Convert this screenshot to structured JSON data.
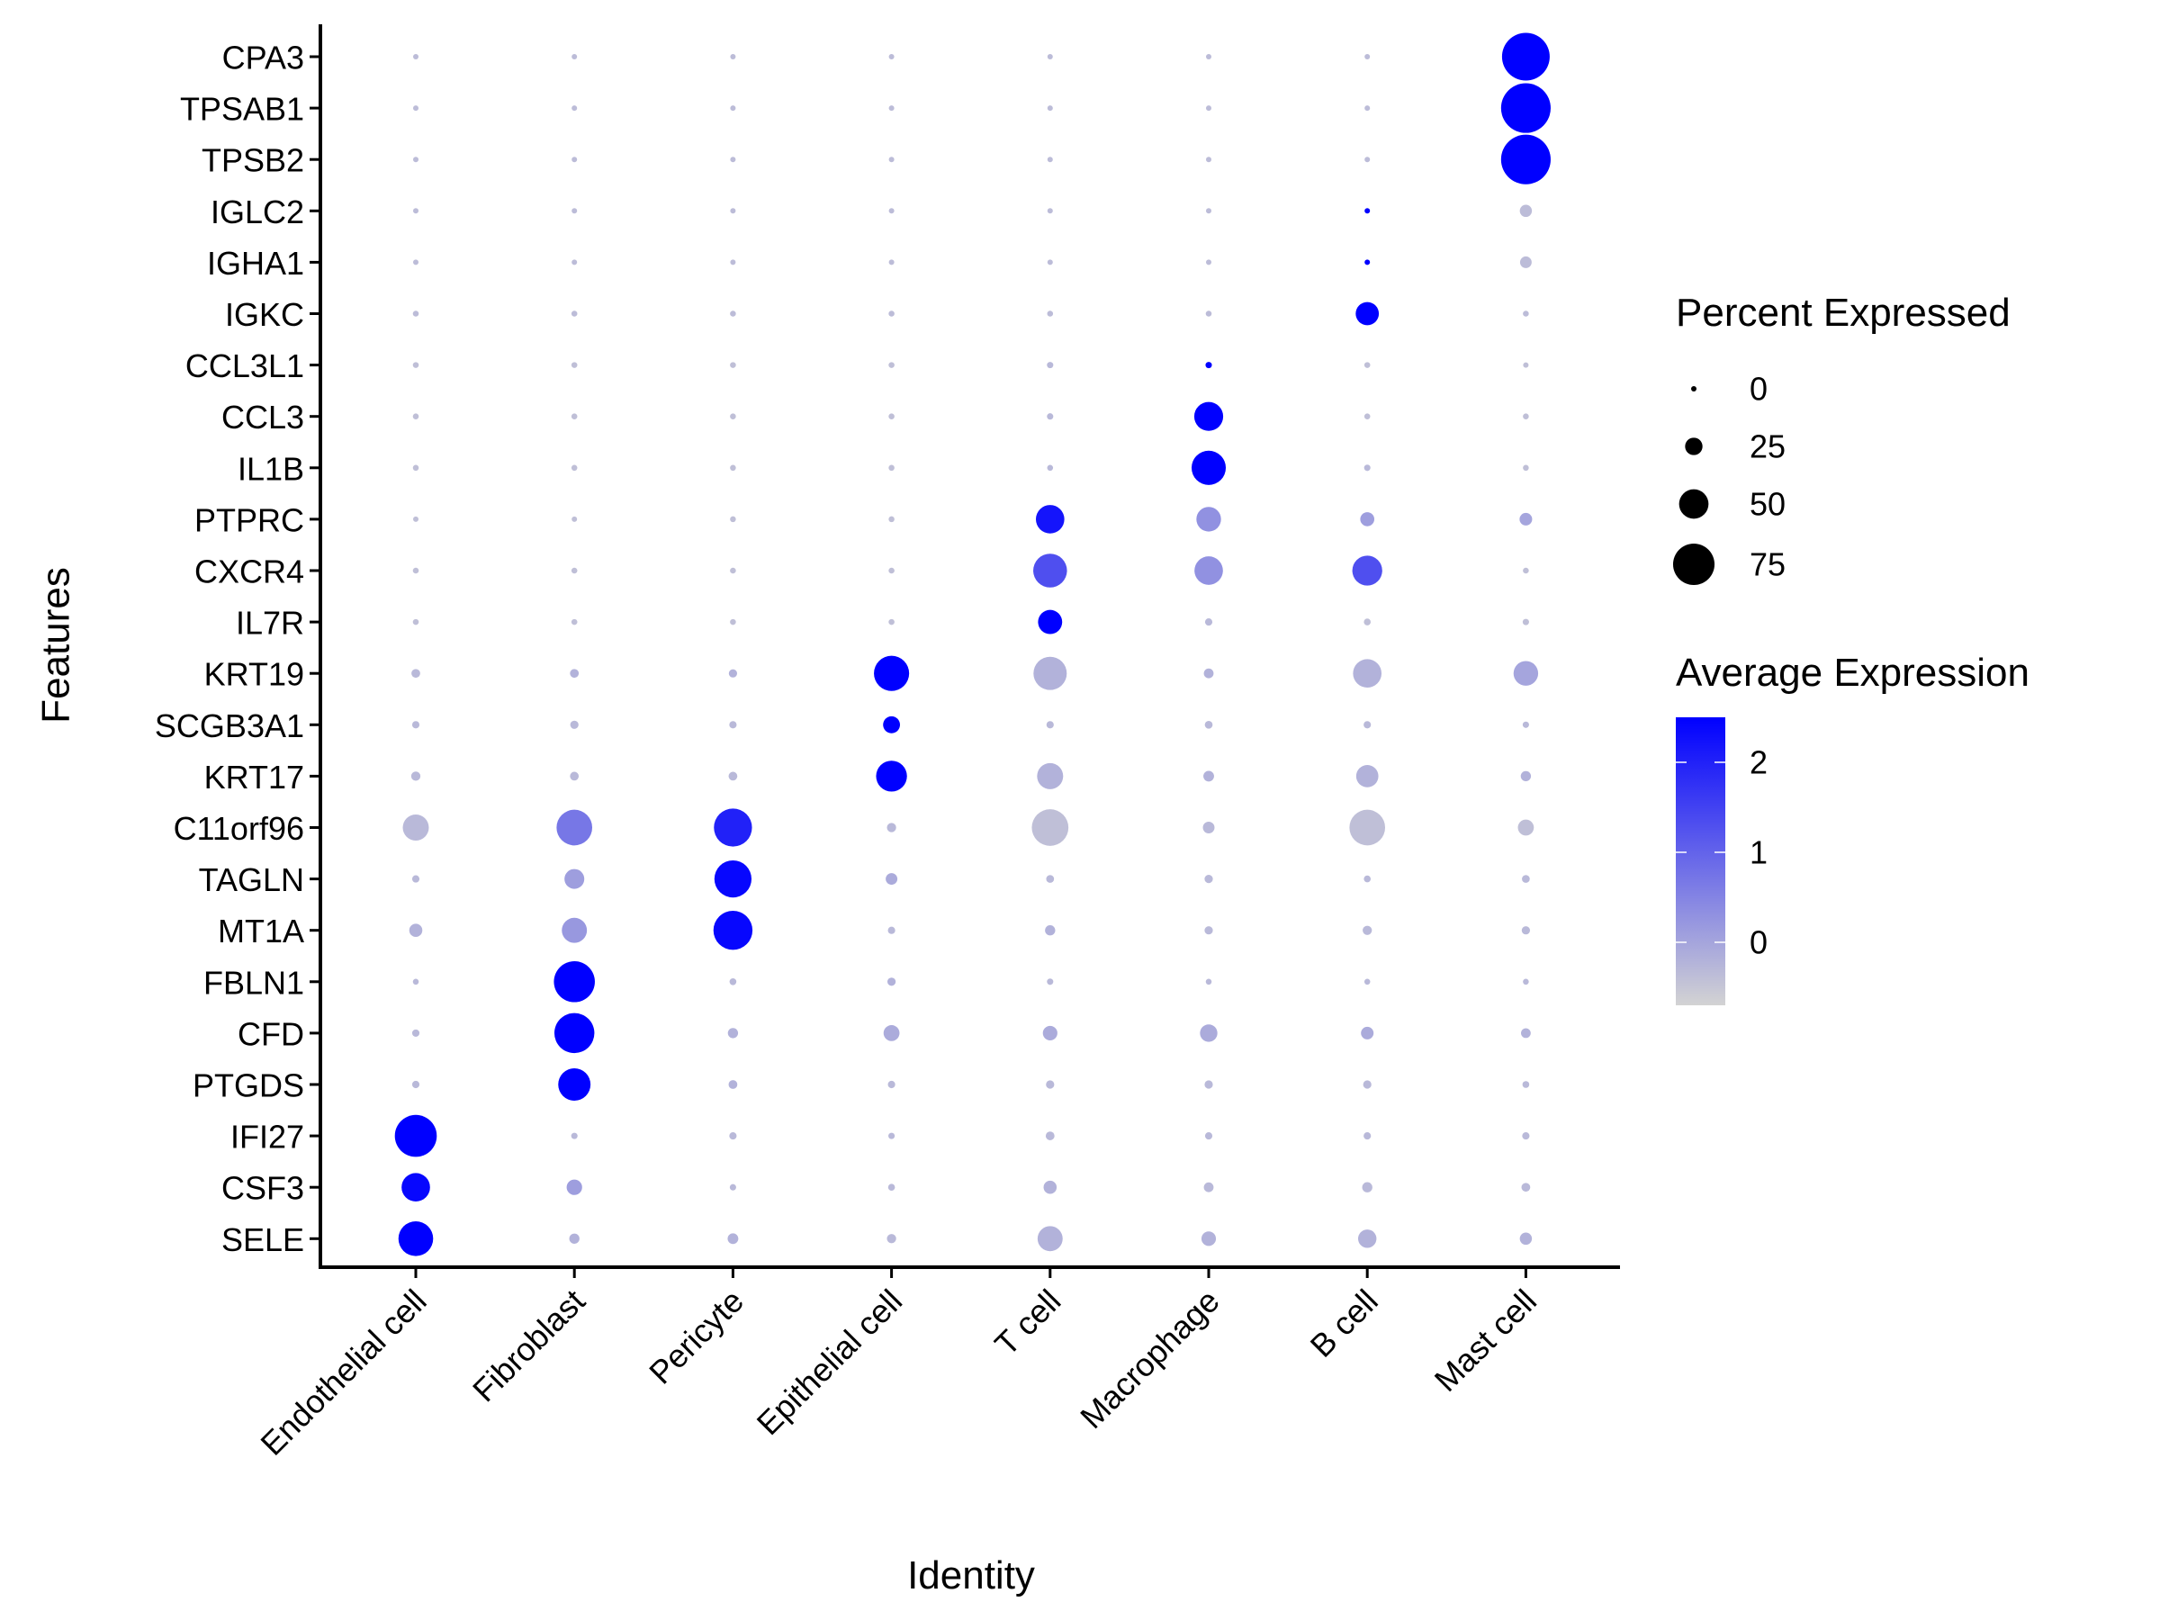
{
  "chart_data": {
    "type": "dotplot",
    "title": "",
    "xlabel": "Identity",
    "ylabel": "Features",
    "categories": [
      "Endothelial cell",
      "Fibroblast",
      "Pericyte",
      "Epithelial cell",
      "T cell",
      "Macrophage",
      "B cell",
      "Mast cell"
    ],
    "features": [
      "CPA3",
      "TPSAB1",
      "TPSB2",
      "IGLC2",
      "IGHA1",
      "IGKC",
      "CCL3L1",
      "CCL3",
      "IL1B",
      "PTPRC",
      "CXCR4",
      "IL7R",
      "KRT19",
      "SCGB3A1",
      "KRT17",
      "C11orf96",
      "TAGLN",
      "MT1A",
      "FBLN1",
      "CFD",
      "PTGDS",
      "IFI27",
      "CSF3",
      "SELE"
    ],
    "percent_expressed": [
      [
        0,
        0,
        0,
        0,
        0,
        0,
        0,
        88
      ],
      [
        0,
        0,
        0,
        0,
        0,
        0,
        0,
        92
      ],
      [
        0,
        0,
        0,
        0,
        0,
        0,
        0,
        92
      ],
      [
        0,
        0,
        0,
        0,
        0,
        0,
        0,
        14
      ],
      [
        0,
        0,
        0,
        0,
        0,
        0,
        0,
        13
      ],
      [
        1,
        1,
        1,
        1,
        1,
        1,
        37,
        1
      ],
      [
        1,
        1,
        1,
        1,
        2,
        2,
        1,
        0
      ],
      [
        1,
        1,
        1,
        1,
        2,
        49,
        1,
        1
      ],
      [
        1,
        1,
        1,
        1,
        1,
        60,
        2,
        1
      ],
      [
        0,
        0,
        1,
        1,
        48,
        40,
        18,
        15
      ],
      [
        1,
        1,
        1,
        1,
        59,
        48,
        51,
        1
      ],
      [
        1,
        1,
        1,
        1,
        39,
        4,
        3,
        2
      ],
      [
        7,
        7,
        6,
        62,
        58,
        9,
        48,
        40
      ],
      [
        4,
        6,
        4,
        24,
        4,
        5,
        4,
        2
      ],
      [
        8,
        7,
        7,
        53,
        43,
        11,
        35,
        10
      ],
      [
        43,
        63,
        68,
        8,
        65,
        13,
        63,
        22
      ],
      [
        4,
        30,
        66,
        13,
        5,
        6,
        3,
        5
      ],
      [
        16,
        41,
        70,
        4,
        10,
        6,
        8,
        6
      ],
      [
        1,
        74,
        3,
        6,
        2,
        1,
        1,
        1
      ],
      [
        4,
        72,
        10,
        22,
        19,
        25,
        15,
        9
      ],
      [
        4,
        56,
        7,
        4,
        6,
        6,
        6,
        3
      ],
      [
        76,
        2,
        4,
        2,
        7,
        4,
        4,
        4
      ],
      [
        48,
        21,
        2,
        3,
        16,
        9,
        10,
        7
      ],
      [
        61,
        10,
        11,
        8,
        41,
        19,
        27,
        14
      ]
    ],
    "average_expression": [
      [
        -0.35,
        -0.35,
        -0.35,
        -0.35,
        -0.35,
        -0.35,
        -0.35,
        2.5
      ],
      [
        -0.35,
        -0.35,
        -0.35,
        -0.35,
        -0.35,
        -0.35,
        -0.35,
        2.5
      ],
      [
        -0.35,
        -0.35,
        -0.35,
        -0.35,
        -0.35,
        -0.35,
        -0.35,
        2.5
      ],
      [
        -0.35,
        -0.35,
        -0.35,
        -0.35,
        -0.35,
        -0.35,
        2.5,
        -0.35
      ],
      [
        -0.35,
        -0.35,
        -0.35,
        -0.35,
        -0.35,
        -0.35,
        2.5,
        -0.35
      ],
      [
        -0.35,
        -0.35,
        -0.35,
        -0.35,
        -0.35,
        -0.35,
        2.5,
        -0.35
      ],
      [
        -0.4,
        -0.4,
        -0.4,
        -0.4,
        -0.3,
        2.5,
        -0.4,
        -0.4
      ],
      [
        -0.4,
        -0.4,
        -0.4,
        -0.4,
        -0.3,
        2.5,
        -0.4,
        -0.4
      ],
      [
        -0.4,
        -0.4,
        -0.4,
        -0.4,
        -0.3,
        2.5,
        -0.3,
        -0.4
      ],
      [
        -0.4,
        -0.4,
        -0.4,
        -0.4,
        2.2,
        0.3,
        0.1,
        0.0
      ],
      [
        -0.4,
        -0.4,
        -0.4,
        -0.4,
        1.3,
        0.3,
        1.3,
        -0.4
      ],
      [
        -0.4,
        -0.4,
        -0.4,
        -0.4,
        2.5,
        -0.3,
        -0.4,
        -0.4
      ],
      [
        -0.3,
        -0.2,
        -0.2,
        2.5,
        -0.2,
        -0.2,
        -0.2,
        0.0
      ],
      [
        -0.3,
        -0.3,
        -0.3,
        2.5,
        -0.3,
        -0.3,
        -0.3,
        -0.3
      ],
      [
        -0.3,
        -0.3,
        -0.3,
        2.5,
        -0.2,
        -0.2,
        -0.2,
        -0.2
      ],
      [
        -0.3,
        0.7,
        2.0,
        -0.3,
        -0.4,
        -0.3,
        -0.4,
        -0.4
      ],
      [
        -0.3,
        0.1,
        2.4,
        -0.1,
        -0.3,
        -0.3,
        -0.3,
        -0.3
      ],
      [
        -0.2,
        0.2,
        2.4,
        -0.3,
        -0.2,
        -0.3,
        -0.3,
        -0.3
      ],
      [
        -0.3,
        2.5,
        -0.3,
        -0.2,
        -0.3,
        -0.3,
        -0.3,
        -0.3
      ],
      [
        -0.3,
        2.5,
        -0.2,
        -0.1,
        -0.1,
        -0.1,
        -0.1,
        -0.2
      ],
      [
        -0.3,
        2.5,
        -0.2,
        -0.3,
        -0.3,
        -0.3,
        -0.3,
        -0.3
      ],
      [
        2.5,
        -0.3,
        -0.3,
        -0.3,
        -0.3,
        -0.3,
        -0.3,
        -0.3
      ],
      [
        2.4,
        0.1,
        -0.3,
        -0.3,
        -0.2,
        -0.3,
        -0.3,
        -0.3
      ],
      [
        2.5,
        -0.2,
        -0.2,
        -0.3,
        -0.2,
        -0.2,
        -0.2,
        -0.2
      ]
    ],
    "size_legend": {
      "title": "Percent Expressed",
      "breaks": [
        "0",
        "25",
        "50",
        "75"
      ],
      "values": [
        0,
        25,
        50,
        75
      ]
    },
    "color_legend": {
      "title": "Average Expression",
      "breaks": [
        "2",
        "1",
        "0"
      ],
      "values": [
        2,
        1,
        0
      ],
      "range": [
        -0.7,
        2.5
      ],
      "low_color": "#d3d3d3",
      "high_color": "#0000ff"
    },
    "legend_position": "right",
    "grid": false
  }
}
